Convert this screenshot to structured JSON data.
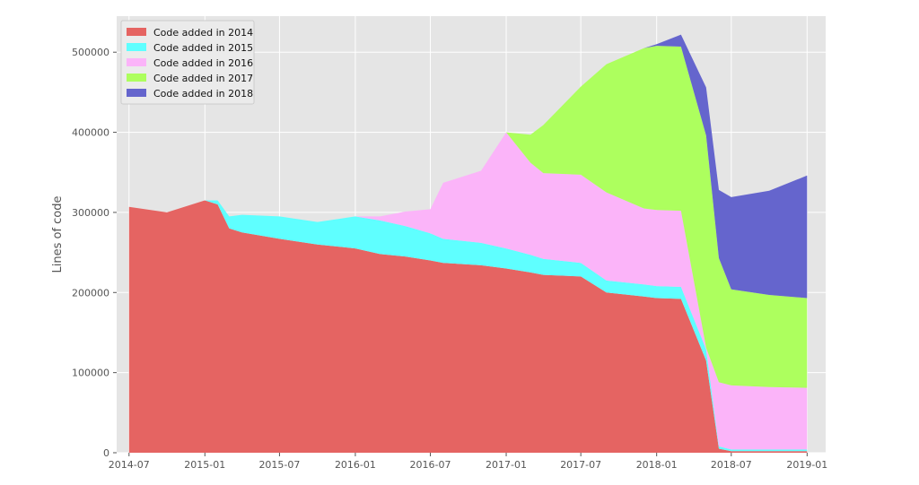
{
  "chart_data": {
    "type": "area",
    "stacked": true,
    "title": "",
    "xlabel": "",
    "ylabel": "Lines of code",
    "x_axis": "date",
    "xlim": [
      "2014-06-01",
      "2019-02-15"
    ],
    "ylim": [
      0,
      545000
    ],
    "grid": true,
    "legend_position": "top-left",
    "x_tick_labels": [
      "2014-07",
      "2015-01",
      "2015-07",
      "2016-01",
      "2016-07",
      "2017-01",
      "2017-07",
      "2018-01",
      "2018-07",
      "2019-01"
    ],
    "x_tick_values": [
      "2014-07-01",
      "2015-01-01",
      "2015-07-01",
      "2016-01-01",
      "2016-07-01",
      "2017-01-01",
      "2017-07-01",
      "2018-01-01",
      "2018-07-01",
      "2019-01-01"
    ],
    "y_ticks": [
      0,
      100000,
      200000,
      300000,
      400000,
      500000
    ],
    "dates": [
      "2014-07-01",
      "2014-10-01",
      "2015-01-01",
      "2015-02-01",
      "2015-03-01",
      "2015-04-01",
      "2015-07-01",
      "2015-10-01",
      "2016-01-01",
      "2016-03-01",
      "2016-05-01",
      "2016-07-01",
      "2016-08-01",
      "2016-11-01",
      "2017-01-01",
      "2017-03-01",
      "2017-04-01",
      "2017-07-01",
      "2017-09-01",
      "2017-12-01",
      "2018-01-01",
      "2018-03-01",
      "2018-05-01",
      "2018-06-01",
      "2018-07-01",
      "2018-10-01",
      "2019-01-01"
    ],
    "series": [
      {
        "name": "Code added in 2014",
        "color": "#e56462",
        "values": [
          307000,
          300000,
          315000,
          310000,
          280000,
          275000,
          267000,
          260000,
          255000,
          248000,
          245000,
          240000,
          237000,
          234000,
          230000,
          225000,
          222000,
          220000,
          200000,
          195000,
          193000,
          192000,
          115000,
          5000,
          2000,
          2000,
          2000
        ]
      },
      {
        "name": "Code added in 2015",
        "color": "#5fffff",
        "values": [
          0,
          0,
          0,
          5000,
          15000,
          22000,
          28000,
          28000,
          40000,
          42000,
          38000,
          34000,
          30000,
          28000,
          25000,
          22000,
          20000,
          17000,
          15000,
          15000,
          15000,
          15000,
          14000,
          3000,
          2000,
          2000,
          2000
        ]
      },
      {
        "name": "Code added in 2016",
        "color": "#fbb4f9",
        "values": [
          0,
          0,
          0,
          0,
          0,
          0,
          0,
          0,
          0,
          5000,
          18000,
          30000,
          70000,
          90000,
          145000,
          115000,
          107000,
          110000,
          110000,
          95000,
          95000,
          95000,
          2000,
          80000,
          80000,
          78000,
          77000
        ]
      },
      {
        "name": "Code added in 2017",
        "color": "#adff5e",
        "values": [
          0,
          0,
          0,
          0,
          0,
          0,
          0,
          0,
          0,
          0,
          0,
          0,
          0,
          0,
          0,
          35000,
          60000,
          110000,
          160000,
          200000,
          205000,
          205000,
          265000,
          155000,
          120000,
          115000,
          112000
        ]
      },
      {
        "name": "Code added in 2018",
        "color": "#6565cd",
        "values": [
          0,
          0,
          0,
          0,
          0,
          0,
          0,
          0,
          0,
          0,
          0,
          0,
          0,
          0,
          0,
          0,
          0,
          0,
          0,
          0,
          2000,
          15000,
          60000,
          85000,
          115000,
          130000,
          153000
        ]
      }
    ]
  }
}
